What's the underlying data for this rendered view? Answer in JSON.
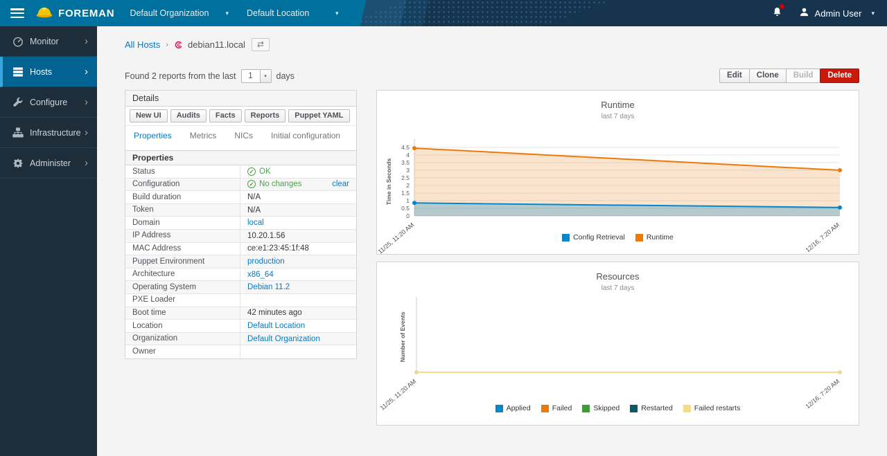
{
  "navbar": {
    "brand": "FOREMAN",
    "org_selector": "Default Organization",
    "loc_selector": "Default Location",
    "user": "Admin User",
    "colors": {
      "left": "#00719e",
      "right": "#16344e"
    }
  },
  "sidebar": {
    "items": [
      {
        "label": "Monitor",
        "icon": "gauge-icon",
        "active": false
      },
      {
        "label": "Hosts",
        "icon": "servers-icon",
        "active": true
      },
      {
        "label": "Configure",
        "icon": "wrench-icon",
        "active": false
      },
      {
        "label": "Infrastructure",
        "icon": "sitemap-icon",
        "active": false
      },
      {
        "label": "Administer",
        "icon": "gear-icon",
        "active": false
      }
    ],
    "colors": {
      "bg": "#1e2d3a",
      "active_bg": "#026291",
      "active_border": "#39a5dc"
    }
  },
  "breadcrumb": {
    "parent": "All Hosts",
    "separator": "›",
    "os_icon": "debian-icon",
    "current": "debian11.local",
    "switcher_icon": "⇄"
  },
  "toolbar": {
    "report_text_prefix": "Found 2 reports from the last",
    "days_value": "1",
    "report_text_suffix": "days",
    "actions": [
      {
        "label": "Edit",
        "style": "default"
      },
      {
        "label": "Clone",
        "style": "default"
      },
      {
        "label": "Build",
        "style": "disabled"
      },
      {
        "label": "Delete",
        "style": "danger",
        "color": "#c9190b"
      }
    ]
  },
  "details": {
    "title": "Details",
    "buttons": [
      "New UI",
      "Audits",
      "Facts",
      "Reports",
      "Puppet YAML"
    ],
    "tabs": [
      {
        "label": "Properties",
        "active": true
      },
      {
        "label": "Metrics",
        "active": false
      },
      {
        "label": "NICs",
        "active": false
      },
      {
        "label": "Initial configuration",
        "active": false
      }
    ],
    "properties": {
      "title": "Properties",
      "rows": [
        {
          "label": "Status",
          "value": "OK",
          "type": "status-ok"
        },
        {
          "label": "Configuration",
          "value": "No changes",
          "type": "status-ok",
          "action": "clear"
        },
        {
          "label": "Build duration",
          "value": "N/A",
          "type": "text"
        },
        {
          "label": "Token",
          "value": "N/A",
          "type": "text"
        },
        {
          "label": "Domain",
          "value": "local",
          "type": "link"
        },
        {
          "label": "IP Address",
          "value": "10.20.1.56",
          "type": "text"
        },
        {
          "label": "MAC Address",
          "value": "ce:e1:23:45:1f:48",
          "type": "text"
        },
        {
          "label": "Puppet Environment",
          "value": "production",
          "type": "link"
        },
        {
          "label": "Architecture",
          "value": "x86_64",
          "type": "link"
        },
        {
          "label": "Operating System",
          "value": "Debian 11.2",
          "type": "link"
        },
        {
          "label": "PXE Loader",
          "value": "",
          "type": "text"
        },
        {
          "label": "Boot time",
          "value": "42 minutes ago",
          "type": "text"
        },
        {
          "label": "Location",
          "value": "Default Location",
          "type": "link"
        },
        {
          "label": "Organization",
          "value": "Default Organization",
          "type": "link"
        },
        {
          "label": "Owner",
          "value": "",
          "type": "text"
        }
      ]
    }
  },
  "chart_data": [
    {
      "type": "area",
      "title": "Runtime",
      "subtitle": "last 7 days",
      "ylabel": "Time in Seconds",
      "ylim": [
        0,
        4.5
      ],
      "ytick_step": 0.5,
      "grid": true,
      "legend_position": "bottom",
      "x": [
        "11/25, 11:20 AM",
        "12/16, 7:20 AM"
      ],
      "series": [
        {
          "name": "Config Retrieval",
          "color": "#0088ce",
          "fill_opacity": 0.28,
          "values": [
            0.85,
            0.55
          ]
        },
        {
          "name": "Runtime",
          "color": "#ec7a08",
          "fill_opacity": 0.2,
          "values": [
            4.45,
            3.0
          ]
        }
      ]
    },
    {
      "type": "area",
      "title": "Resources",
      "subtitle": "last 7 days",
      "ylabel": "Number of Events",
      "ylim": [
        0,
        1
      ],
      "ytick_step": 0,
      "grid": false,
      "legend_position": "bottom",
      "x": [
        "11/25, 11:20 AM",
        "12/16, 7:20 AM"
      ],
      "series": [
        {
          "name": "Applied",
          "color": "#0088ce",
          "fill_opacity": 0,
          "values": [
            0,
            0
          ]
        },
        {
          "name": "Failed",
          "color": "#ec7a08",
          "fill_opacity": 0,
          "values": [
            0,
            0
          ]
        },
        {
          "name": "Skipped",
          "color": "#3f9c35",
          "fill_opacity": 0,
          "values": [
            0,
            0
          ]
        },
        {
          "name": "Restarted",
          "color": "#055c66",
          "fill_opacity": 0,
          "values": [
            0,
            0
          ]
        },
        {
          "name": "Failed restarts",
          "color": "#f2dc8c",
          "fill_opacity": 0,
          "values": [
            0,
            0
          ]
        }
      ]
    }
  ]
}
